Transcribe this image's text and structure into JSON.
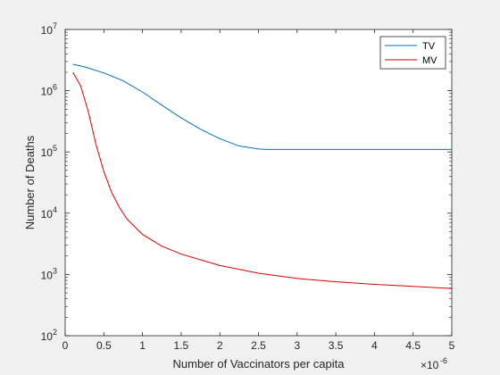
{
  "chart_data": {
    "type": "line",
    "title": "",
    "xlabel": "Number of Vaccinators per capita",
    "ylabel": "Number of Deaths",
    "x_multiplier_label": "×10",
    "x_multiplier_exp": "-6",
    "x_scale": "linear",
    "y_scale": "log",
    "xlim": [
      0,
      5
    ],
    "ylim": [
      100,
      10000000
    ],
    "x_ticks": [
      0,
      0.5,
      1,
      1.5,
      2,
      2.5,
      3,
      3.5,
      4,
      4.5,
      5
    ],
    "x_tick_labels": [
      "0",
      "0.5",
      "1",
      "1.5",
      "2",
      "2.5",
      "3",
      "3.5",
      "4",
      "4.5",
      "5"
    ],
    "y_ticks": [
      {
        "value": 100,
        "base": "10",
        "exp": "2"
      },
      {
        "value": 1000,
        "base": "10",
        "exp": "3"
      },
      {
        "value": 10000,
        "base": "10",
        "exp": "4"
      },
      {
        "value": 100000,
        "base": "10",
        "exp": "5"
      },
      {
        "value": 1000000,
        "base": "10",
        "exp": "6"
      },
      {
        "value": 10000000,
        "base": "10",
        "exp": "7"
      }
    ],
    "grid": false,
    "legend_position": "top-right",
    "series": [
      {
        "name": "TV",
        "color": "#0072bd",
        "x": [
          0.1,
          0.25,
          0.5,
          0.75,
          1.0,
          1.25,
          1.5,
          1.75,
          2.0,
          2.25,
          2.5,
          2.6,
          3.0,
          3.5,
          4.0,
          4.5,
          5.0
        ],
        "y": [
          2700000,
          2450000,
          1950000,
          1450000,
          950000,
          580000,
          360000,
          235000,
          165000,
          125000,
          112000,
          110000,
          110000,
          110000,
          110000,
          110000,
          110000
        ]
      },
      {
        "name": "MV",
        "color": "#d90000",
        "x": [
          0.1,
          0.2,
          0.3,
          0.4,
          0.5,
          0.6,
          0.7,
          0.8,
          1.0,
          1.25,
          1.5,
          2.0,
          2.5,
          3.0,
          3.5,
          4.0,
          4.5,
          5.0
        ],
        "y": [
          2000000,
          1200000,
          450000,
          130000,
          48000,
          22000,
          12500,
          8000,
          4500,
          2900,
          2150,
          1400,
          1050,
          860,
          760,
          690,
          640,
          590
        ]
      }
    ]
  }
}
